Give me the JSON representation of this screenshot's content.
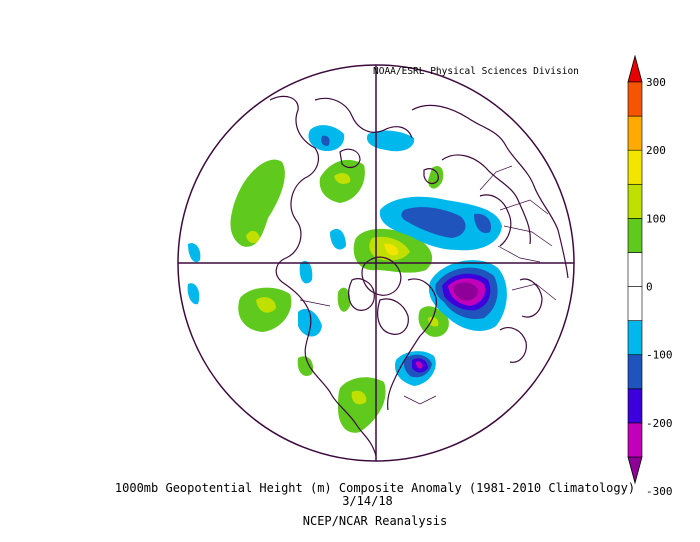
{
  "credit": "NOAA/ESRL Physical Sciences Division",
  "title": "1000mb Geopotential Height (m) Composite Anomaly (1981-2010 Climatology)",
  "date": "3/14/18",
  "source": "NCEP/NCAR Reanalysis",
  "colorbar": {
    "colors": [
      "#8e0097",
      "#c200b9",
      "#3b00db",
      "#1f54bd",
      "#00b8ec",
      "#ffffff",
      "#ffffff",
      "#5fc91d",
      "#bfe000",
      "#f2e600",
      "#ffaa00",
      "#f55500",
      "#e60000"
    ],
    "tick_labels": [
      "300",
      "200",
      "100",
      "0",
      "-100",
      "-200",
      "-300"
    ]
  }
}
